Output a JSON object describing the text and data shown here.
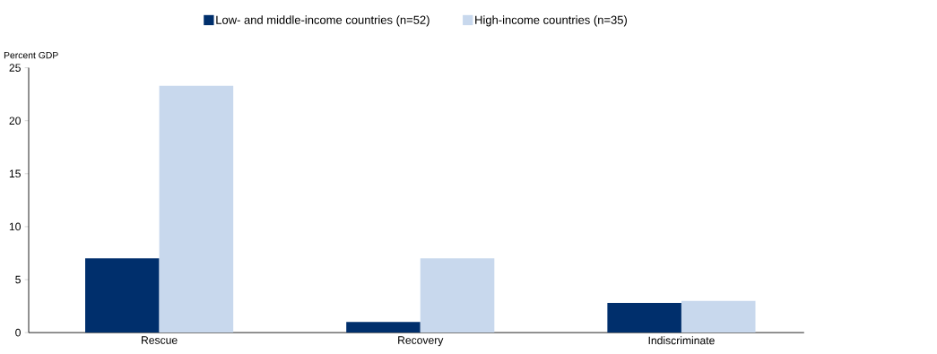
{
  "chart_data": {
    "type": "bar",
    "ylabel": "Percent GDP",
    "categories": [
      "Rescue",
      "Recovery",
      "Indiscriminate"
    ],
    "series": [
      {
        "name": "Low- and middle-income countries (n=52)",
        "color": "#002f6c",
        "values": [
          7.0,
          1.0,
          2.8
        ]
      },
      {
        "name": "High-income countries (n=35)",
        "color": "#c8d8ed",
        "values": [
          23.3,
          7.0,
          3.0
        ]
      }
    ],
    "ylim": [
      0,
      25
    ],
    "yticks": [
      0,
      5,
      10,
      15,
      20,
      25
    ],
    "grid": false,
    "legend": "top"
  }
}
